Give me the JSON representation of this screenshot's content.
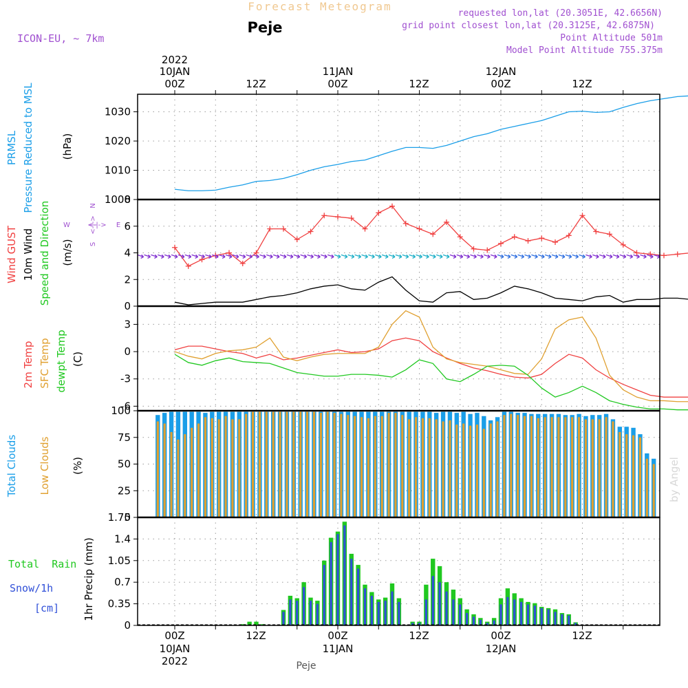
{
  "header": {
    "title": "Forecast Meteogram",
    "location": "Peje",
    "model": "ICON-EU, ~ 7km",
    "requested": "requested lon,lat (20.3051E, 42.6656N)",
    "gridpoint": "grid point closest lon,lat (20.3125E, 42.6875N)",
    "point_alt": "Point Altitude 501m",
    "model_alt": "Model Point Altitude 755.375m",
    "credit": "by Angel",
    "footer_location": "Peje"
  },
  "colors": {
    "blue": "#1a9ee8",
    "orange": "#e0a030",
    "red": "#f04040",
    "green": "#20c820",
    "purple": "#a050d0",
    "black": "#000000",
    "snow": "#3050d8",
    "title": "#f0c890"
  },
  "time_axis": {
    "top_year": "2022",
    "day_labels": [
      "10JAN",
      "11JAN",
      "12JAN"
    ],
    "hour_labels": [
      "00Z",
      "12Z",
      "00Z",
      "12Z",
      "00Z",
      "12Z"
    ],
    "bottom_year": "2022"
  },
  "chart_data": [
    {
      "type": "line",
      "ylabel_lines": [
        "PRMSL",
        "Pressure Reduced to MSL",
        "(hPa)"
      ],
      "yticks": [
        "1030",
        "1020",
        "1010",
        "1000"
      ],
      "ylim": [
        1000,
        1036
      ],
      "x_hours": [
        0,
        2,
        4,
        6,
        8,
        10,
        12,
        14,
        16,
        18,
        20,
        22,
        24,
        26,
        28,
        30,
        32,
        34,
        36,
        38,
        40,
        42,
        44,
        46,
        48,
        50,
        52,
        54,
        56,
        58,
        60,
        62,
        64,
        66,
        68,
        70,
        72,
        74,
        76
      ],
      "series": [
        {
          "name": "PRMSL",
          "color": "#1a9ee8",
          "values": [
            1003.5,
            1003.0,
            1003.0,
            1003.2,
            1004.2,
            1005.0,
            1006.2,
            1006.5,
            1007.2,
            1008.5,
            1010.0,
            1011.2,
            1012.0,
            1013.0,
            1013.5,
            1015.0,
            1016.5,
            1017.8,
            1017.8,
            1017.5,
            1018.5,
            1020.0,
            1021.5,
            1022.5,
            1024.0,
            1025.0,
            1026.0,
            1027.0,
            1028.5,
            1030.0,
            1030.2,
            1029.8,
            1030.0,
            1031.5,
            1032.8,
            1033.8,
            1034.5,
            1035.2,
            1035.5
          ]
        }
      ]
    },
    {
      "type": "line",
      "ylabel_lines": [
        "Wind GUST",
        "10m Wind",
        "Speed and Direction",
        "(m/s)"
      ],
      "compass": {
        "n": "N",
        "s": "S",
        "e": "E",
        "w": "W"
      },
      "yticks": [
        "8",
        "6",
        "4",
        "2",
        "0"
      ],
      "ylim": [
        0,
        8
      ],
      "x_hours": [
        0,
        2,
        4,
        6,
        8,
        10,
        12,
        14,
        16,
        18,
        20,
        22,
        24,
        26,
        28,
        30,
        32,
        34,
        36,
        38,
        40,
        42,
        44,
        46,
        48,
        50,
        52,
        54,
        56,
        58,
        60,
        62,
        64,
        66,
        68,
        70,
        72,
        74,
        76
      ],
      "series": [
        {
          "name": "Wind GUST",
          "color": "#f04040",
          "values": [
            4.4,
            3.0,
            3.5,
            3.8,
            4.0,
            3.2,
            4.0,
            5.8,
            5.8,
            5.0,
            5.6,
            6.8,
            6.7,
            6.6,
            5.8,
            7.0,
            7.5,
            6.2,
            5.8,
            5.4,
            6.3,
            5.2,
            4.3,
            4.2,
            4.7,
            5.2,
            4.9,
            5.1,
            4.8,
            5.3,
            6.8,
            5.6,
            5.4,
            4.6,
            4.0,
            3.9,
            3.8,
            3.9,
            4.0
          ]
        },
        {
          "name": "10m Wind",
          "color": "#000000",
          "values": [
            0.3,
            0.1,
            0.2,
            0.3,
            0.3,
            0.3,
            0.5,
            0.7,
            0.8,
            1.0,
            1.3,
            1.5,
            1.6,
            1.3,
            1.2,
            1.8,
            2.2,
            1.2,
            0.4,
            0.3,
            1.0,
            1.1,
            0.5,
            0.6,
            1.0,
            1.5,
            1.3,
            1.0,
            0.6,
            0.5,
            0.4,
            0.7,
            0.8,
            0.3,
            0.5,
            0.5,
            0.6,
            0.6,
            0.5
          ]
        }
      ],
      "barbs": {
        "y": 3.8,
        "every_hours": 1
      }
    },
    {
      "type": "line",
      "ylabel_lines": [
        "2m Temp",
        "SFC Temp",
        "dewpt Temp",
        "(C)"
      ],
      "yticks": [
        "3",
        "0",
        "-3",
        "-6"
      ],
      "ylim": [
        -6.5,
        5
      ],
      "x_hours": [
        0,
        2,
        4,
        6,
        8,
        10,
        12,
        14,
        16,
        18,
        20,
        22,
        24,
        26,
        28,
        30,
        32,
        34,
        36,
        38,
        40,
        42,
        44,
        46,
        48,
        50,
        52,
        54,
        56,
        58,
        60,
        62,
        64,
        66,
        68,
        70,
        72,
        74,
        76
      ],
      "series": [
        {
          "name": "2m Temp",
          "color": "#f04040",
          "values": [
            0.2,
            0.6,
            0.6,
            0.3,
            0.0,
            -0.2,
            -0.7,
            -0.3,
            -0.9,
            -0.7,
            -0.4,
            -0.1,
            0.2,
            -0.1,
            0.0,
            0.3,
            1.2,
            1.5,
            1.2,
            0.0,
            -0.7,
            -1.3,
            -1.8,
            -2.1,
            -2.5,
            -2.8,
            -2.9,
            -2.5,
            -1.3,
            -0.3,
            -0.7,
            -2.0,
            -2.9,
            -3.6,
            -4.2,
            -4.8,
            -5.0,
            -5.0,
            -5.0
          ]
        },
        {
          "name": "SFC Temp",
          "color": "#e0a030",
          "values": [
            0.0,
            -0.5,
            -0.8,
            -0.2,
            0.1,
            0.2,
            0.5,
            1.5,
            -0.6,
            -1.0,
            -0.6,
            -0.3,
            -0.2,
            -0.2,
            -0.2,
            0.5,
            3.0,
            4.5,
            3.8,
            0.5,
            -0.8,
            -1.2,
            -1.4,
            -1.6,
            -2.0,
            -2.4,
            -2.5,
            -0.8,
            2.5,
            3.5,
            3.8,
            1.5,
            -2.6,
            -4.2,
            -5.0,
            -5.4,
            -5.4,
            -5.5,
            -5.5
          ]
        },
        {
          "name": "dewpt Temp",
          "color": "#20c820",
          "values": [
            -0.3,
            -1.2,
            -1.5,
            -1.0,
            -0.7,
            -1.1,
            -1.2,
            -1.3,
            -1.8,
            -2.3,
            -2.5,
            -2.7,
            -2.7,
            -2.5,
            -2.5,
            -2.6,
            -2.8,
            -2.0,
            -0.9,
            -1.3,
            -3.0,
            -3.3,
            -2.5,
            -1.6,
            -1.5,
            -1.6,
            -2.6,
            -4.0,
            -5.0,
            -4.5,
            -3.8,
            -4.5,
            -5.4,
            -5.8,
            -6.1,
            -6.3,
            -6.3,
            -6.4,
            -6.4
          ]
        }
      ]
    },
    {
      "type": "bar",
      "ylabel_lines": [
        "Total Clouds",
        "Low Clouds",
        "(%)"
      ],
      "yticks": [
        "100",
        "75",
        "50",
        "25",
        "0"
      ],
      "ylim": [
        0,
        100
      ],
      "bar_x_start": -2.5,
      "bar_step_hours": 1,
      "series": [
        {
          "name": "Total Clouds",
          "color": "#1a9ee8",
          "values": [
            96,
            98,
            99,
            99,
            99,
            99,
            99,
            98,
            99,
            99,
            99,
            99,
            99,
            99,
            99,
            99,
            99,
            99,
            99,
            99,
            99,
            99,
            99,
            99,
            99,
            99,
            99,
            99,
            99,
            99,
            99,
            99,
            99,
            99,
            99,
            99,
            99,
            99,
            99,
            99,
            99,
            98,
            99,
            99,
            98,
            99,
            97,
            98,
            95,
            91,
            94,
            99,
            99,
            98,
            98,
            97,
            97,
            97,
            97,
            97,
            96,
            96,
            97,
            95,
            96,
            96,
            97,
            92,
            85,
            85,
            84,
            78,
            60,
            55,
            47,
            42,
            55,
            54,
            49,
            47,
            46,
            46,
            42,
            44,
            47,
            38,
            45,
            48,
            50
          ]
        },
        {
          "name": "Low Clouds",
          "color": "#e0a030",
          "values": [
            90,
            88,
            80,
            73,
            78,
            84,
            88,
            94,
            93,
            92,
            95,
            92,
            92,
            97,
            99,
            99,
            99,
            99,
            99,
            99,
            99,
            99,
            99,
            99,
            98,
            99,
            98,
            97,
            96,
            95,
            94,
            93,
            95,
            95,
            98,
            98,
            96,
            92,
            94,
            93,
            93,
            92,
            90,
            91,
            87,
            88,
            86,
            87,
            83,
            88,
            90,
            96,
            97,
            96,
            95,
            95,
            93,
            94,
            94,
            94,
            94,
            94,
            94,
            92,
            92,
            92,
            94,
            90,
            80,
            78,
            77,
            75,
            55,
            50,
            45,
            41,
            55,
            54,
            48,
            46,
            46,
            45,
            41,
            44,
            46,
            36,
            42,
            47,
            49
          ]
        }
      ]
    },
    {
      "type": "bar",
      "ylabel_lines": [
        "1hr Precip (mm)"
      ],
      "side_labels": [
        "Total  Rain",
        "Snow/1h",
        "[cm]"
      ],
      "yticks": [
        "1.75",
        "1.4",
        "1.05",
        "0.7",
        "0.35",
        "0"
      ],
      "ylim": [
        0,
        1.75
      ],
      "bar_x_start": 0,
      "bar_step_hours": 1,
      "series": [
        {
          "name": "Total Rain",
          "color": "#20c820",
          "values": [
            0,
            0,
            0,
            0,
            0,
            0,
            0,
            0,
            0,
            0,
            0.02,
            0.06,
            0.06,
            0.02,
            0,
            0,
            0.25,
            0.48,
            0.44,
            0.7,
            0.45,
            0.4,
            1.05,
            1.42,
            1.52,
            1.68,
            1.16,
            0.98,
            0.66,
            0.54,
            0.42,
            0.45,
            0.68,
            0.44,
            0,
            0.06,
            0.06,
            0.66,
            1.08,
            0.96,
            0.7,
            0.58,
            0.44,
            0.26,
            0.18,
            0.12,
            0.06,
            0.12,
            0.44,
            0.6,
            0.52,
            0.44,
            0.38,
            0.36,
            0.3,
            0.28,
            0.26,
            0.2,
            0.18,
            0.05,
            0,
            0,
            0,
            0,
            0,
            0,
            0,
            0,
            0,
            0,
            0,
            0,
            0,
            0,
            0,
            0,
            0,
            0,
            0,
            0,
            0,
            0,
            0,
            0,
            0
          ]
        },
        {
          "name": "Snow/1h",
          "color": "#3050d8",
          "values": [
            0,
            0,
            0,
            0,
            0,
            0,
            0,
            0,
            0,
            0,
            0,
            0,
            0,
            0,
            0,
            0,
            0.22,
            0.42,
            0.4,
            0.62,
            0.4,
            0.35,
            0.98,
            1.35,
            1.48,
            1.62,
            1.08,
            0.92,
            0.6,
            0.48,
            0.38,
            0.4,
            0.55,
            0.38,
            0,
            0.04,
            0.04,
            0.42,
            0.8,
            0.7,
            0.55,
            0.42,
            0.34,
            0.2,
            0.14,
            0.09,
            0.04,
            0.08,
            0.34,
            0.46,
            0.42,
            0.38,
            0.34,
            0.32,
            0.28,
            0.26,
            0.22,
            0.18,
            0.16,
            0.04,
            0,
            0,
            0,
            0,
            0,
            0,
            0,
            0,
            0,
            0,
            0,
            0,
            0,
            0,
            0,
            0,
            0,
            0,
            0,
            0,
            0,
            0,
            0,
            0,
            0
          ]
        }
      ]
    }
  ]
}
